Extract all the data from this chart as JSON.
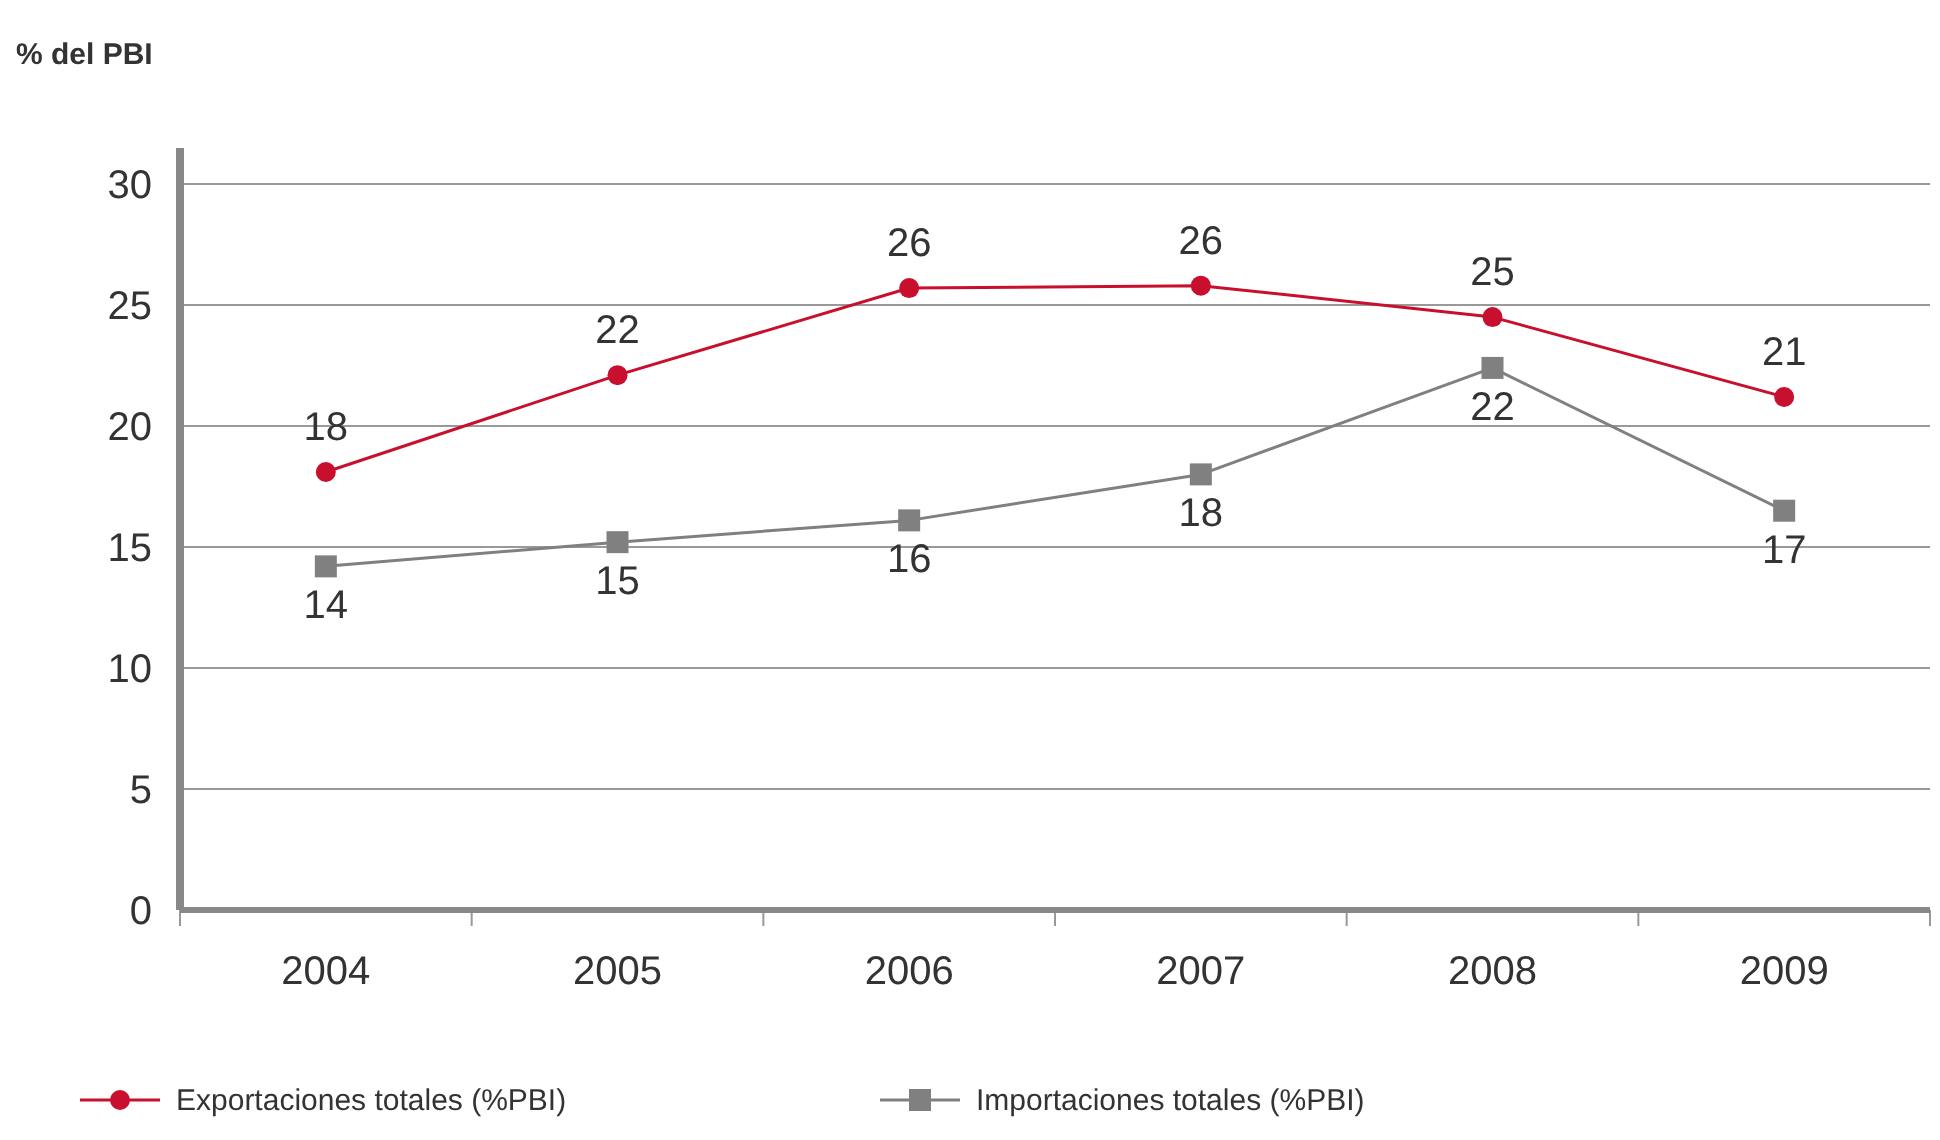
{
  "chart_data": {
    "type": "line",
    "ylabel": "% del PBI",
    "categories": [
      "2004",
      "2005",
      "2006",
      "2007",
      "2008",
      "2009"
    ],
    "series": [
      {
        "name": "Exportaciones totales (%PBI)",
        "color": "#c8102e",
        "marker": "circle",
        "values": [
          18.1,
          22.1,
          25.7,
          25.8,
          24.5,
          21.2
        ],
        "value_labels": [
          "18",
          "22",
          "26",
          "26",
          "25",
          "21"
        ]
      },
      {
        "name": "Importaciones totales (%PBI)",
        "color": "#808080",
        "marker": "square",
        "values": [
          14.2,
          15.2,
          16.1,
          18.0,
          22.4,
          16.5
        ],
        "value_labels": [
          "14",
          "15",
          "16",
          "18",
          "22",
          "17"
        ]
      }
    ],
    "ylim": [
      0,
      30
    ],
    "yticks": [
      0,
      5,
      10,
      15,
      20,
      25,
      30
    ],
    "grid": "y",
    "legend": "bottom"
  }
}
